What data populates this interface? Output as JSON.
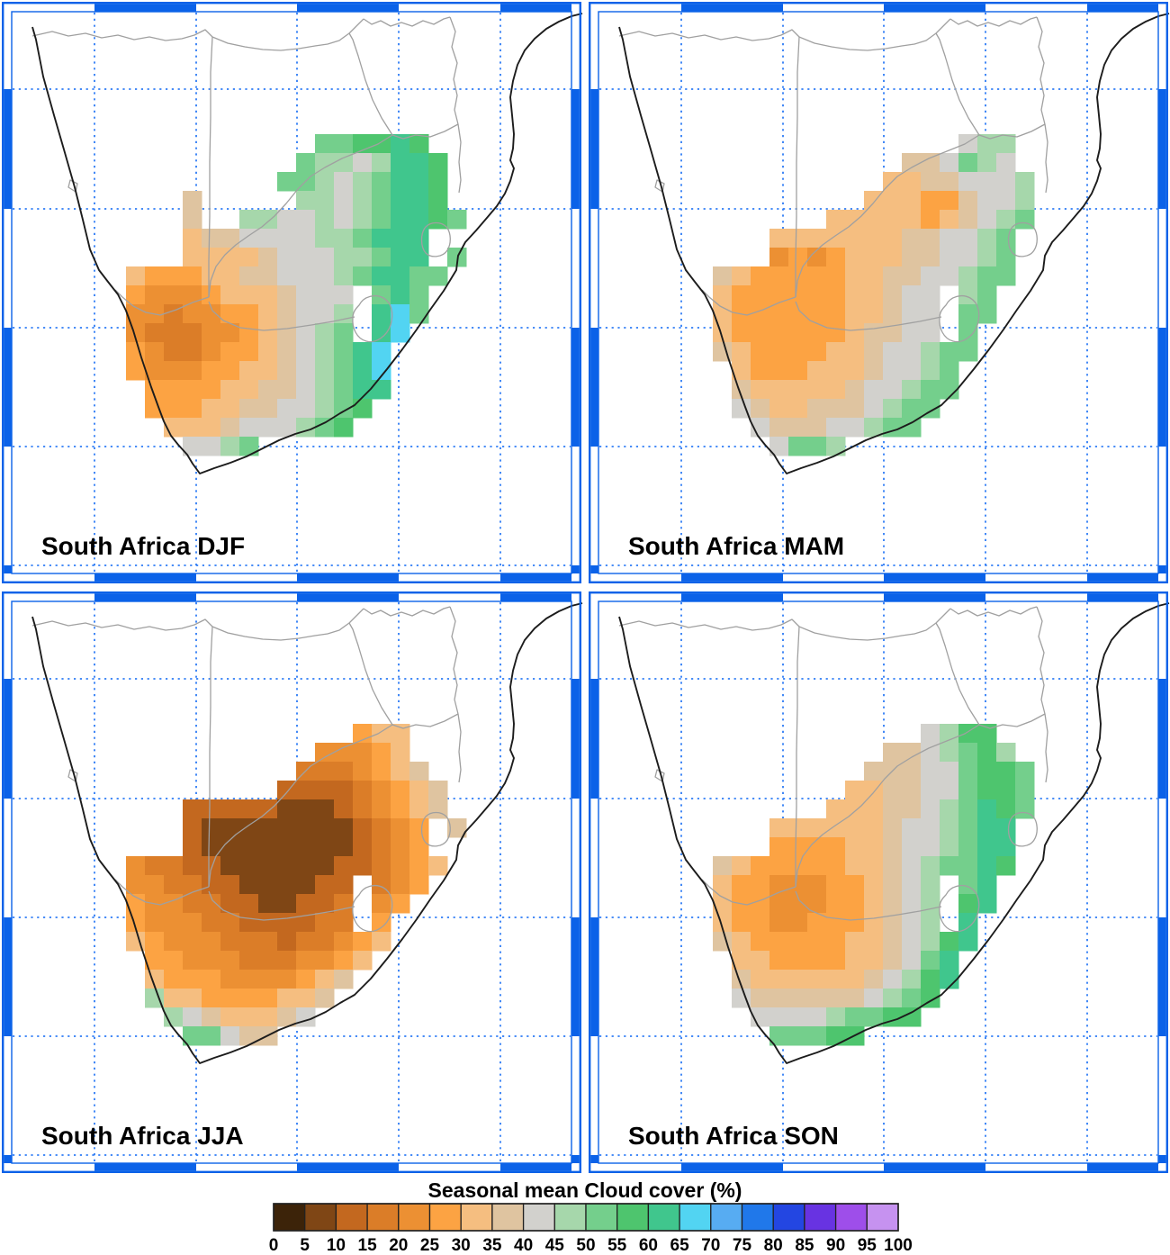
{
  "style_colors": {
    "frame_blue": "#0B62E8",
    "gridline_blue": "#2E7CF6",
    "coastline": "#1C1C1C",
    "country_border": "#A0A0A0",
    "background": "#FFFFFF",
    "label_color": "#000000",
    "colorbar_outline": "#222222"
  },
  "chart_data": {
    "type": "heatmap",
    "title": "Seasonal mean Cloud cover (%)",
    "units": "%",
    "layout": "2x2 panel grid of identical southern-Africa maps, shared horizontal colorbar legend at bottom, dashed blue graticule, alternating blue frame ticks",
    "colorbar": {
      "tick_labels": [
        "0",
        "5",
        "10",
        "15",
        "20",
        "25",
        "30",
        "35",
        "40",
        "45",
        "50",
        "55",
        "60",
        "65",
        "70",
        "75",
        "80",
        "85",
        "90",
        "95",
        "100"
      ],
      "bin_edges": [
        0,
        5,
        10,
        15,
        20,
        25,
        30,
        35,
        40,
        45,
        50,
        55,
        60,
        65,
        70,
        75,
        80,
        85,
        90,
        95,
        100
      ],
      "bin_colors": [
        "#3C2309",
        "#7F4615",
        "#C3681F",
        "#DB7D28",
        "#EC9033",
        "#FCA343",
        "#F5BE80",
        "#DFC4A0",
        "#D2D1CD",
        "#A6D7AB",
        "#74CF8C",
        "#4EC56E",
        "#40C68D",
        "#52D4F2",
        "#57ACF2",
        "#2078EA",
        "#2346E2",
        "#6833E2",
        "#9E4EEA",
        "#C692F0"
      ]
    },
    "grid_encoding": {
      "keys": "abcdefghijklmnopqrst",
      "note": "Each letter is one 5% bin of cloud cover: a=0-5, b=5-10, c=10-15, d=15-20, e=20-25, f=25-30, g=30-35, h=35-40, i=40-45, j=45-50, k=50-55, l=55-60, m=60-65, n=65-70, o=70-75, p=75-80, q=80-85, r=85-90, s=90-95, t=95-100. '.' = no data (outside South Africa region). Values estimated by reading map cell colors against the legend."
    },
    "panels": [
      {
        "season": "DJF",
        "label": "South Africa DJF",
        "summary": "Summer: low cloud 15-30% over the western interior (Northern Cape core 15-20%), 30-45% transition band, 45-65% over the eastern half with 65-70% patches near the KwaZulu-Natal coast.",
        "grid": [
          "...................",
          "..........kkllml...",
          ".........kjjijmml..",
          "........kkjijkmml..",
          "...h.....jjijkmml..",
          "...h..jjiijijkmmlk.",
          "...ghhiiiijjkmmm...",
          "...gggghiiijjkmm.k.",
          "gfffgghhiiijkmmkk..",
          "feeefggghiii.kmk...",
          "eedeeffghiij.mnk...",
          "edddeefghijk.mn....",
          "feddeffghijkmn.....",
          "feeeffgghijkmn.....",
          ".ffffgghhijkmm.....",
          ".fffgghhiijkl......",
          "..ggghiiijkl.......",
          "...iijk............"
        ]
      },
      {
        "season": "MAM",
        "label": "South Africa MAM",
        "summary": "Autumn: 25-35% over most of the west and centre, 35-45% grey band along the east, 45-55% pale green along the southeast coast and far northeast.",
        "grid": [
          "...................",
          ".............ijj...",
          "..........hhikji...",
          ".........gghhiiij..",
          "........gggffhiij..",
          "......gggggfghijk..",
          "...ggggggghhiijk...",
          "...efefggghhiijk...",
          "hgfffffgghhiijkk...",
          "gffffffgghii.jk....",
          "gffffffgghii.kk....",
          "gffffffghhii.k.....",
          "hgffffgghiijkk.....",
          ".gfffggghiijk......",
          ".hggggghiijkk......",
          ".ihgghhhijkk.......",
          "..ihhhiijkk........",
          "...ikkj............"
        ]
      },
      {
        "season": "JJA",
        "label": "South Africa JJA",
        "summary": "Winter: driest season, 5-15% dark brown band across the northern/central plateau, 15-30% around it, 35-45% near the south coast and 50-55% green at the Cape southwest tip.",
        "grid": [
          "...................",
          "............fgg....",
          "..........eeefg....",
          ".........dddefgh...",
          "........ccccdefgh..",
          "...cccccbbbcdefgh..",
          "...cbbbbbbbbcdef.h.",
          "...cbbbbbbbbcdef...",
          "eddccbbbbbbccdefg..",
          "eeddccbbbbcc.def...",
          "feeddccbbccd.ef....",
          "feeeddccccdd.f.....",
          "gfeeedddcddefg.....",
          ".ffeeedddeefg......",
          ".gfffeeeefgh.......",
          ".jggffffggh........",
          "..jihggghi.........",
          "...kkihh..........."
        ]
      },
      {
        "season": "SON",
        "label": "South Africa SON",
        "summary": "Spring: 20-30% orange core over the west-central interior, 30-45% tan/grey transition, 50-65% green-teal strip all along the east and south coasts.",
        "grid": [
          "...................",
          "...........ijll....",
          ".........hhijklj...",
          "........hhhiikllk..",
          ".......gghhiikllk..",
          "......ggghhijkmlk..",
          "...gggggghiijkmm...",
          "...ffffgghiijkmm...",
          "hgfffffgghijkkml...",
          "gffeeeffghij.km....",
          "gffeeeffghij.lm....",
          "gffeefffghij.m.....",
          "hgfffffgghijlm.....",
          ".ggffffgghikm......",
          ".hgggggghijlm......",
          ".ihhhhhhijkl.......",
          "..iiiijkkll........",
          "...kkkll..........."
        ]
      }
    ]
  }
}
